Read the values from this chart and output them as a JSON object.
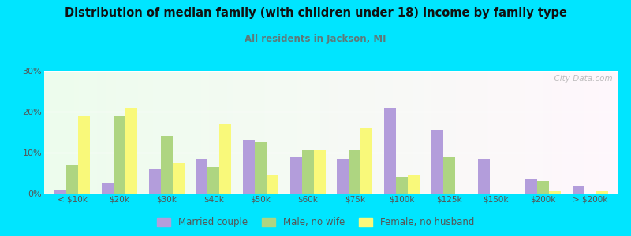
{
  "title": "Distribution of median family (with children under 18) income by family type",
  "subtitle": "All residents in Jackson, MI",
  "categories": [
    "< $10k",
    "$20k",
    "$30k",
    "$40k",
    "$50k",
    "$60k",
    "$75k",
    "$100k",
    "$125k",
    "$150k",
    "$200k",
    "> $200k"
  ],
  "married_couple": [
    1,
    2.5,
    6,
    8.5,
    13,
    9,
    8.5,
    21,
    15.5,
    8.5,
    3.5,
    2
  ],
  "male_no_wife": [
    7,
    19,
    14,
    6.5,
    12.5,
    10.5,
    10.5,
    4,
    9,
    0,
    3,
    0
  ],
  "female_no_husband": [
    19,
    21,
    7.5,
    17,
    4.5,
    10.5,
    16,
    4.5,
    0,
    0,
    0.5,
    0.5
  ],
  "color_married": "#b39ddb",
  "color_male": "#aed581",
  "color_female": "#f9f97a",
  "background_outer": "#00e5ff",
  "ylim": [
    0,
    30
  ],
  "yticks": [
    0,
    10,
    20,
    30
  ],
  "ytick_labels": [
    "0%",
    "10%",
    "20%",
    "30%"
  ],
  "watermark": "  City-Data.com",
  "legend_labels": [
    "Married couple",
    "Male, no wife",
    "Female, no husband"
  ],
  "subtitle_color": "#5d7a7a",
  "title_color": "#111111",
  "tick_color": "#555555",
  "bar_width": 0.25
}
